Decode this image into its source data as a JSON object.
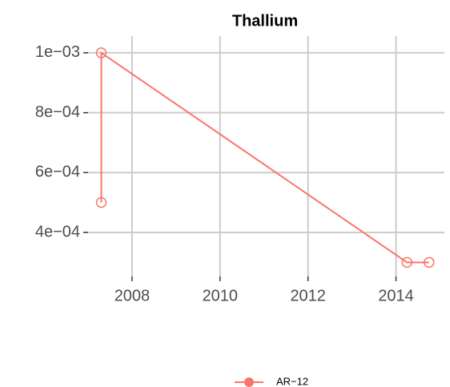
{
  "chart_data": {
    "type": "line",
    "title": "Thallium",
    "x": [
      2007.3,
      2007.3,
      2014.25,
      2014.75
    ],
    "series": [
      {
        "name": "AR−12",
        "color": "#F8766D",
        "values": [
          0.0005,
          0.001,
          0.0003,
          0.0003
        ]
      }
    ],
    "xlim": [
      2007,
      2015.1
    ],
    "xticks": [
      2008,
      2010,
      2012,
      2014
    ],
    "ylim": [
      0.000253,
      0.001056
    ],
    "yticks": [
      {
        "value": 0.0004,
        "label": "4e−04"
      },
      {
        "value": 0.0006,
        "label": "6e−04"
      },
      {
        "value": 0.0008,
        "label": "8e−04"
      },
      {
        "value": 0.001,
        "label": "1e−03"
      }
    ],
    "grid": true,
    "legend": "bottom"
  }
}
